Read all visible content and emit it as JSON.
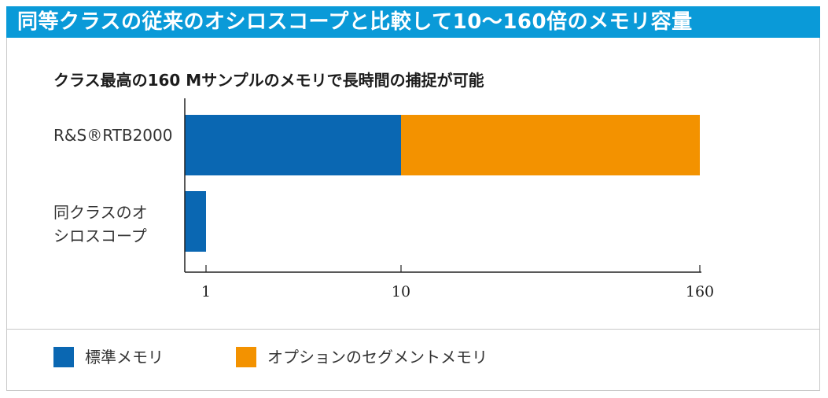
{
  "header": {
    "title": "同等クラスの従来のオシロスコープと比較して10～160倍のメモリ容量"
  },
  "chart_data": {
    "type": "bar",
    "orientation": "horizontal",
    "stacked": true,
    "subtitle": "クラス最高の160 Mサンプルのメモリで長時間の捕捉が可能",
    "categories": [
      "R&S®RTB2000",
      "同クラスのオ\nシロスコープ"
    ],
    "series": [
      {
        "name": "標準メモリ",
        "color": "#0a67b2",
        "values": [
          10,
          1
        ]
      },
      {
        "name": "オプションのセグメントメモリ",
        "color": "#f39200",
        "values": [
          150,
          0
        ]
      }
    ],
    "x_ticks": [
      "1",
      "10",
      "160"
    ],
    "x_tick_values": [
      1,
      10,
      160
    ],
    "xlim": [
      0,
      160
    ],
    "x_scale": "piecewise",
    "grid": false,
    "legend_position": "bottom-left"
  }
}
